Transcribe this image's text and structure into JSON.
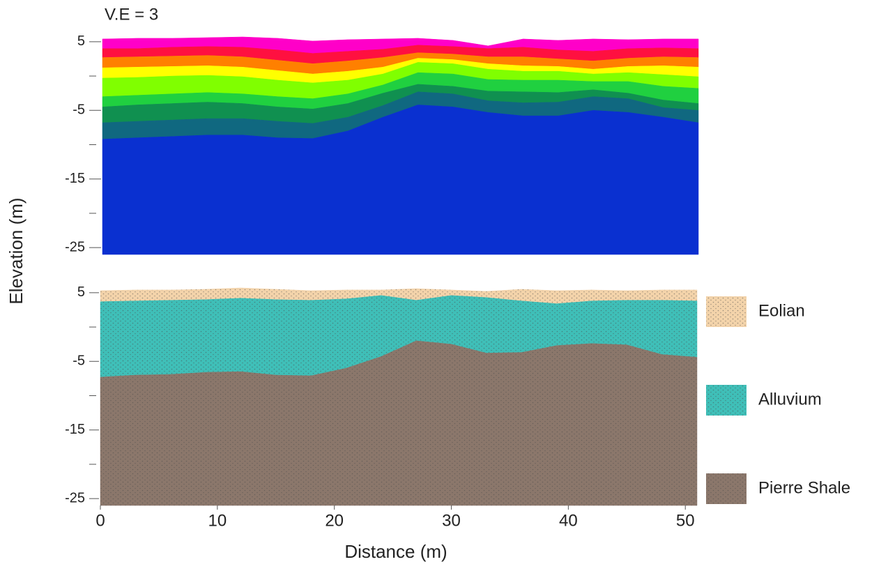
{
  "figure": {
    "annotation": "V.E = 3",
    "ylabel": "Elevation (m)",
    "xlabel": "Distance (m)"
  },
  "chart_data": [
    {
      "type": "section",
      "x": [
        0,
        3,
        6,
        9,
        12,
        15,
        18,
        21,
        24,
        27,
        30,
        33,
        36,
        39,
        42,
        45,
        48,
        51
      ],
      "xlim": [
        0,
        51
      ],
      "ylim": [
        -26,
        6
      ],
      "yticks": [
        5,
        -5,
        -15,
        -25
      ],
      "yminor": [
        0,
        -10,
        -20
      ],
      "series": [
        {
          "color": "#ff00c8",
          "values": [
            5.4,
            5.5,
            5.5,
            5.6,
            5.7,
            5.5,
            5.1,
            5.3,
            5.4,
            5.5,
            5.2,
            4.4,
            5.4,
            5.2,
            5.4,
            5.3,
            5.4,
            5.4
          ]
        },
        {
          "color": "#ff1040",
          "values": [
            4,
            4,
            4.2,
            4.3,
            4.2,
            3.8,
            3.3,
            3.6,
            3.9,
            4.5,
            4.3,
            4,
            4.2,
            3.8,
            3.6,
            4,
            4.1,
            4
          ]
        },
        {
          "color": "#ff8000",
          "values": [
            2.7,
            2.8,
            2.9,
            3,
            2.8,
            2.3,
            1.8,
            2.2,
            2.7,
            3.4,
            3.2,
            2.8,
            2.8,
            2.5,
            2.2,
            2.6,
            2.8,
            2.7
          ]
        },
        {
          "color": "#ffff00",
          "values": [
            1.2,
            1.3,
            1.4,
            1.5,
            1.3,
            0.8,
            0.3,
            0.7,
            1.3,
            2.6,
            2.4,
            1.8,
            1.5,
            1.4,
            1,
            1.4,
            1.5,
            1.3
          ]
        },
        {
          "color": "#80ff00",
          "values": [
            -0.3,
            -0.2,
            0,
            0.1,
            -0.1,
            -0.6,
            -1,
            -0.6,
            0.3,
            2,
            1.8,
            1,
            0.7,
            0.7,
            0.3,
            0.5,
            0.2,
            -0.1
          ]
        },
        {
          "color": "#20d040",
          "values": [
            -3,
            -2.8,
            -2.6,
            -2.4,
            -2.6,
            -3,
            -3.3,
            -2.6,
            -1.3,
            0.5,
            0.3,
            -0.5,
            -0.6,
            -0.6,
            -0.8,
            -0.8,
            -1.5,
            -1.8
          ]
        },
        {
          "color": "#109050",
          "values": [
            -4.5,
            -4.2,
            -4,
            -3.8,
            -4,
            -4.5,
            -4.8,
            -4,
            -2.5,
            -1.2,
            -1.5,
            -2.2,
            -2.3,
            -2.4,
            -2,
            -2.5,
            -3.5,
            -4
          ]
        },
        {
          "color": "#106880",
          "values": [
            -6.8,
            -6.6,
            -6.4,
            -6.2,
            -6.2,
            -6.6,
            -6.9,
            -6,
            -4.3,
            -2.3,
            -2.6,
            -3.6,
            -3.9,
            -3.8,
            -3,
            -3.3,
            -4.6,
            -5
          ]
        },
        {
          "color": "#0a30d0",
          "values": [
            -9.2,
            -9,
            -8.8,
            -8.6,
            -8.6,
            -9,
            -9.1,
            -8,
            -6,
            -4.2,
            -4.5,
            -5.3,
            -5.8,
            -5.8,
            -5,
            -5.3,
            -6,
            -6.8
          ]
        }
      ]
    },
    {
      "type": "section",
      "x": [
        0,
        3,
        6,
        9,
        12,
        15,
        18,
        21,
        24,
        27,
        30,
        33,
        36,
        39,
        42,
        45,
        48,
        51
      ],
      "xlim": [
        0,
        51
      ],
      "ylim": [
        -26,
        6
      ],
      "xticks": [
        0,
        10,
        20,
        30,
        40,
        50
      ],
      "yticks": [
        5,
        -5,
        -15,
        -25
      ],
      "yminor": [
        0,
        -10,
        -20
      ],
      "texture": true,
      "series": [
        {
          "name": "Eolian",
          "color": "#f3d3aa",
          "values": [
            5.3,
            5.4,
            5.4,
            5.5,
            5.7,
            5.5,
            5.3,
            5.4,
            5.4,
            5.6,
            5.4,
            5.2,
            5.5,
            5.3,
            5.4,
            5.3,
            5.4,
            5.4
          ]
        },
        {
          "name": "Alluvium",
          "color": "#3fbfb8",
          "values": [
            3.7,
            3.8,
            3.9,
            4,
            4.2,
            4,
            3.9,
            4.1,
            4.6,
            3.9,
            4.6,
            4.3,
            3.8,
            3.4,
            3.8,
            3.9,
            3.9,
            3.8
          ]
        },
        {
          "name": "Pierre Shale",
          "color": "#8b776b",
          "values": [
            -7.3,
            -7,
            -6.9,
            -6.6,
            -6.5,
            -7,
            -7.1,
            -6,
            -4.3,
            -2,
            -2.5,
            -3.8,
            -3.7,
            -2.7,
            -2.4,
            -2.6,
            -4,
            -4.4
          ]
        }
      ]
    }
  ]
}
